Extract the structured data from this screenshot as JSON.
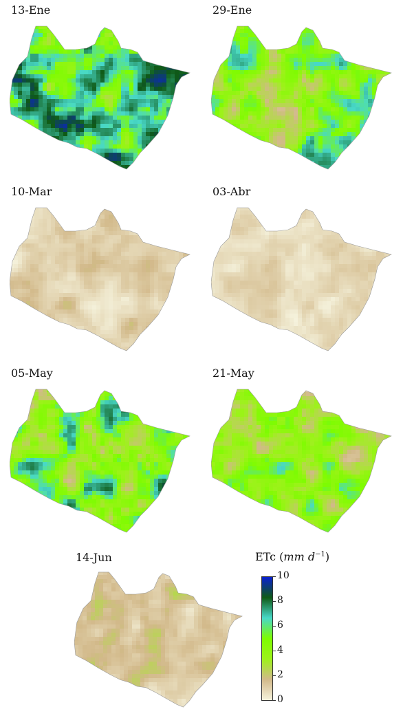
{
  "panels": [
    {
      "title": "13-Ene",
      "level": 6.2
    },
    {
      "title": "29-Ene",
      "level": 4.3
    },
    {
      "title": "10-Mar",
      "level": 1.1
    },
    {
      "title": "03-Abr",
      "level": 0.8
    },
    {
      "title": "05-May",
      "level": 5.0
    },
    {
      "title": "21-May",
      "level": 3.8
    },
    {
      "title": "14-Jun",
      "level": 1.5
    }
  ],
  "colorbar": {
    "title_prefix": "ETc (",
    "title_units": "mm d",
    "title_exp": "−1",
    "title_suffix": ")",
    "ticks": [
      "10",
      "8",
      "6",
      "4",
      "2",
      "0"
    ],
    "range": [
      0,
      10
    ],
    "colors": [
      "#f5f2dc",
      "#d2b98a",
      "#9df21a",
      "#7efc00",
      "#48d8c8",
      "#0f5a16",
      "#0a20d0"
    ]
  }
}
